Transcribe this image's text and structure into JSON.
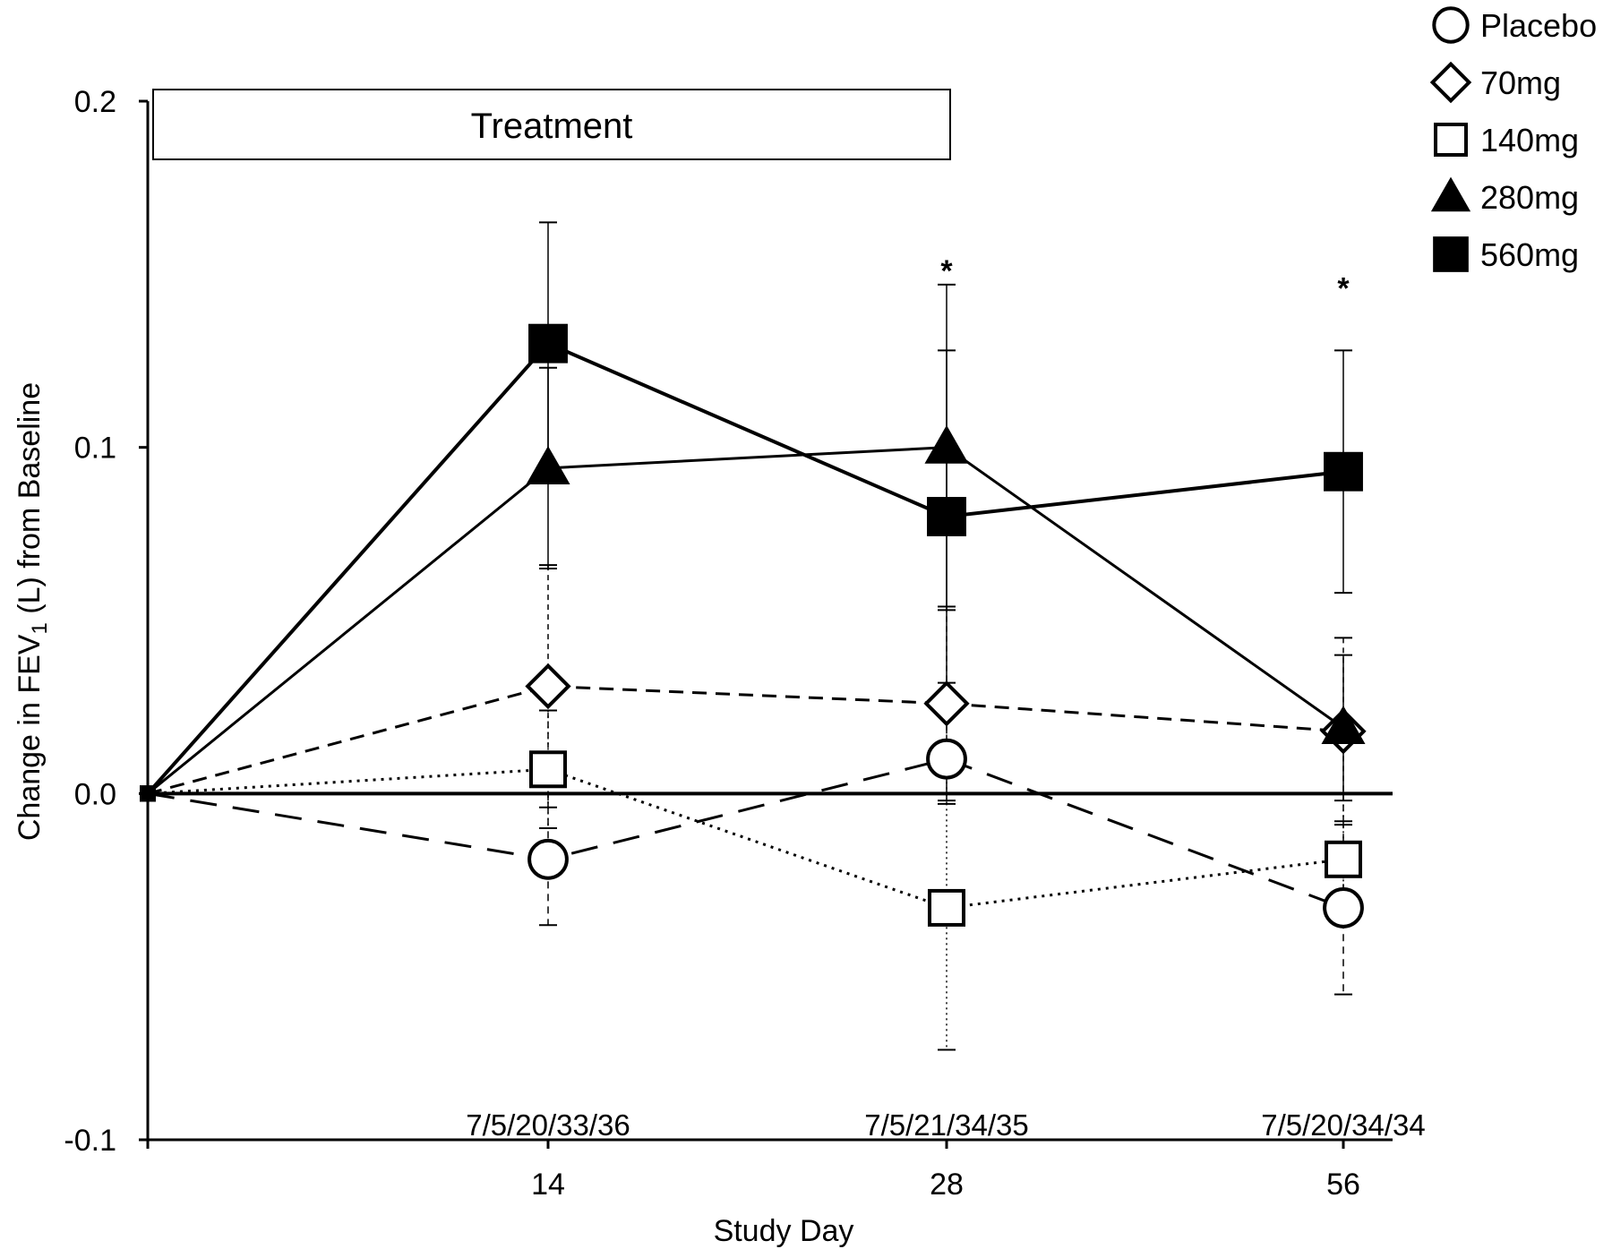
{
  "chart_data": {
    "type": "line",
    "title": "",
    "xlabel": "Study Day",
    "ylabel": "Change in FEV1 (L) from Baseline",
    "ylabel_parts": {
      "pre": "Change in FEV",
      "sub": "1",
      "post": " (L) from Baseline"
    },
    "ylim": [
      -0.1,
      0.2
    ],
    "yticks": [
      {
        "value": 0.2,
        "label": "0.2"
      },
      {
        "value": 0.1,
        "label": "0.1"
      },
      {
        "value": 0.0,
        "label": "0.0"
      },
      {
        "value": -0.1,
        "label": "-0.1"
      }
    ],
    "x_positions": [
      0,
      14,
      28,
      56
    ],
    "xticks": [
      {
        "pos": 14,
        "label": "14"
      },
      {
        "pos": 28,
        "label": "28"
      },
      {
        "pos": 56,
        "label": "56"
      }
    ],
    "treatment_label": "Treatment",
    "treatment_range": [
      0,
      28
    ],
    "counts": [
      {
        "pos": 14,
        "label": "7/5/20/33/36"
      },
      {
        "pos": 28,
        "label": "7/5/21/34/35"
      },
      {
        "pos": 56,
        "label": "7/5/20/34/34"
      }
    ],
    "significance": [
      {
        "pos": 28,
        "label": "*",
        "y": 0.148
      },
      {
        "pos": 56,
        "label": "*",
        "y": 0.143
      }
    ],
    "legend_position": "top-right",
    "series": [
      {
        "name": "Placebo",
        "marker": "circle",
        "filled": false,
        "line": "longdash",
        "values": [
          0.0,
          -0.019,
          0.01,
          -0.033
        ],
        "err": [
          null,
          0.019,
          0.013,
          0.025
        ]
      },
      {
        "name": "70mg",
        "marker": "diamond",
        "filled": false,
        "line": "dash",
        "values": [
          0.0,
          0.031,
          0.026,
          0.018
        ],
        "err": [
          null,
          0.035,
          0.028,
          0.027
        ]
      },
      {
        "name": "140mg",
        "marker": "square",
        "filled": false,
        "line": "dot",
        "values": [
          0.0,
          0.007,
          -0.033,
          -0.019
        ],
        "err": [
          null,
          0.017,
          0.041,
          0.019
        ]
      },
      {
        "name": "280mg",
        "marker": "triangle",
        "filled": true,
        "line": "solid",
        "values": [
          0.0,
          0.094,
          0.1,
          0.019
        ],
        "err": [
          null,
          0.029,
          0.047,
          0.021
        ]
      },
      {
        "name": "560mg",
        "marker": "square",
        "filled": true,
        "line": "solid-thick",
        "values": [
          0.0,
          0.13,
          0.08,
          0.093
        ],
        "err": [
          null,
          0.035,
          0.048,
          0.035
        ]
      }
    ]
  }
}
